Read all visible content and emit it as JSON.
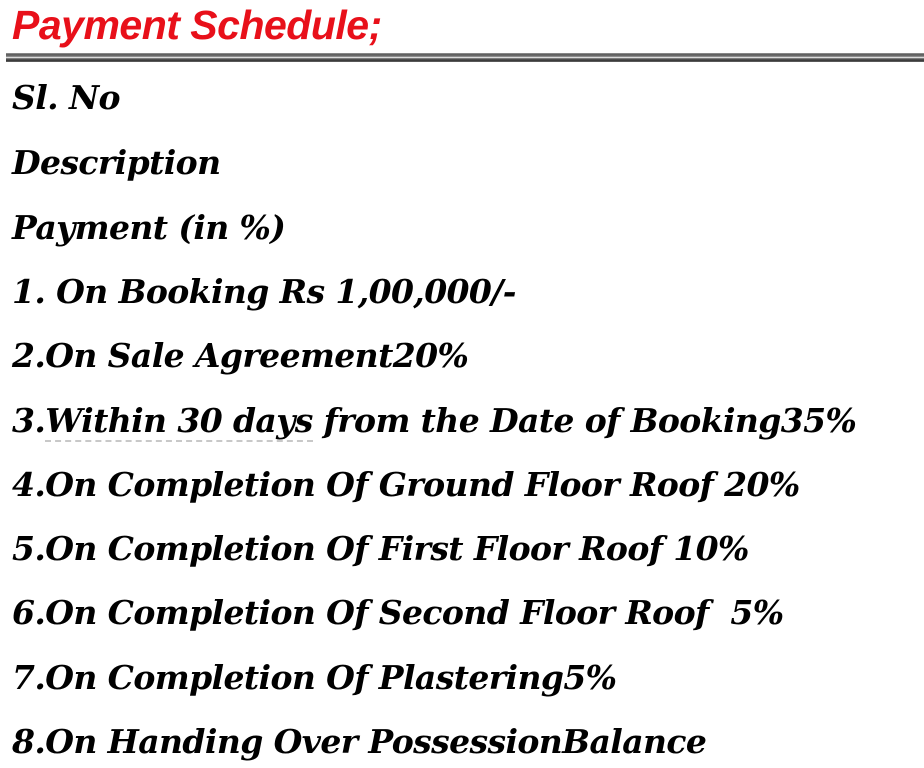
{
  "title": "Payment Schedule;",
  "headers": [
    "Sl. No",
    "Description",
    "Payment (in %)"
  ],
  "items": [
    "1. On Booking Rs 1,00,000/-",
    "2.On Sale Agreement20%",
    {
      "num": "3.",
      "underlined": "Within 30 days",
      "rest": " from the Date of Booking35%"
    },
    "4.On Completion Of Ground Floor Roof 20%",
    "5.On Completion Of First Floor Roof 10%",
    "6.On Completion Of Second Floor Roof  5%",
    "7.On Completion Of Plastering5%",
    "8.On Handing Over PossessionBalance"
  ]
}
